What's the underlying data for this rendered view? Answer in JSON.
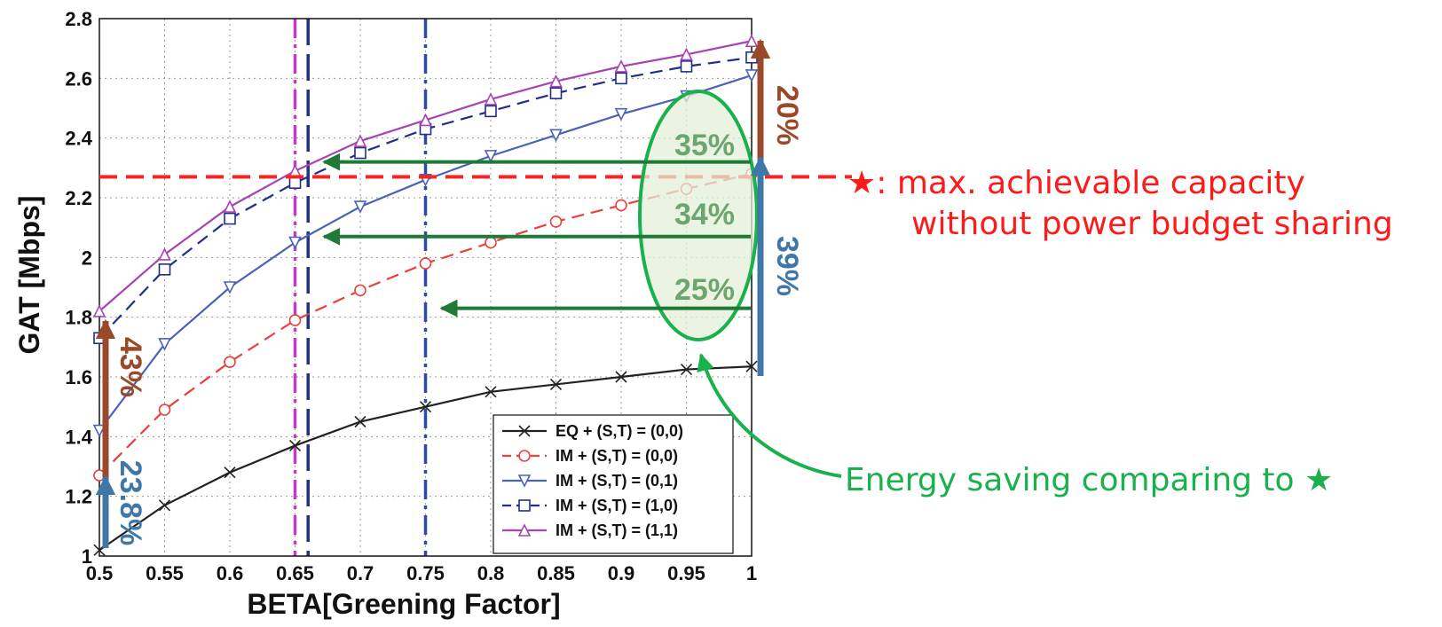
{
  "chart_data": {
    "type": "line",
    "xlabel": "BETA[Greening Factor]",
    "ylabel": "GAT [Mbps]",
    "xlim": [
      0.5,
      1.0
    ],
    "ylim": [
      1.0,
      2.8
    ],
    "x": [
      0.5,
      0.55,
      0.6,
      0.65,
      0.7,
      0.75,
      0.8,
      0.85,
      0.9,
      0.95,
      1.0
    ],
    "x_ticks": [
      "0.5",
      "0.55",
      "0.6",
      "0.65",
      "0.7",
      "0.75",
      "0.8",
      "0.85",
      "0.9",
      "0.95",
      "1"
    ],
    "y_ticks": [
      "1",
      "1.2",
      "1.4",
      "1.6",
      "1.8",
      "2",
      "2.2",
      "2.4",
      "2.6",
      "2.8"
    ],
    "y_tick_values": [
      1.0,
      1.2,
      1.4,
      1.6,
      1.8,
      2.0,
      2.2,
      2.4,
      2.6,
      2.8
    ],
    "grid": true,
    "legend_position": "bottom-right",
    "series": [
      {
        "name": "EQ + (S,T) = (0,0)",
        "color": "#222222",
        "marker": "x",
        "dash": "solid",
        "values": [
          1.02,
          1.17,
          1.28,
          1.37,
          1.45,
          1.5,
          1.55,
          1.575,
          1.6,
          1.625,
          1.635
        ]
      },
      {
        "name": "IM + (S,T) = (0,0)",
        "color": "#e8403c",
        "marker": "circle",
        "dash": "dashed",
        "values": [
          1.27,
          1.49,
          1.65,
          1.79,
          1.89,
          1.98,
          2.05,
          2.12,
          2.175,
          2.23,
          2.28
        ]
      },
      {
        "name": "IM + (S,T) = (0,1)",
        "color": "#4a62b8",
        "marker": "triangle-down",
        "dash": "solid",
        "values": [
          1.42,
          1.71,
          1.9,
          2.05,
          2.17,
          2.26,
          2.34,
          2.41,
          2.48,
          2.54,
          2.61
        ]
      },
      {
        "name": "IM + (S,T) = (1,0)",
        "color": "#1f2f8a",
        "marker": "square",
        "dash": "dashed",
        "values": [
          1.73,
          1.96,
          2.13,
          2.25,
          2.35,
          2.43,
          2.49,
          2.55,
          2.6,
          2.64,
          2.67
        ]
      },
      {
        "name": "IM + (S,T) = (1,1)",
        "color": "#a843b5",
        "marker": "triangle-up",
        "dash": "solid",
        "values": [
          1.82,
          2.01,
          2.17,
          2.29,
          2.39,
          2.46,
          2.53,
          2.59,
          2.64,
          2.68,
          2.725
        ]
      }
    ],
    "vertical_lines": [
      {
        "x": 0.65,
        "color": "#c23bc5",
        "style": "dashdot"
      },
      {
        "x": 0.66,
        "color": "#1f2f8a",
        "style": "long-dash"
      },
      {
        "x": 0.75,
        "color": "#3048a8",
        "style": "dashdot"
      }
    ],
    "threshold": {
      "y": 2.27,
      "color": "#ff2020"
    },
    "annotations": {
      "arrows_left": [
        {
          "label": "35%",
          "y": 2.32,
          "to_x": 0.66
        },
        {
          "label": "34%",
          "y": 2.07,
          "to_x": 0.66
        },
        {
          "label": "25%",
          "y": 1.83,
          "to_x": 0.75
        }
      ],
      "pct_20": "20%",
      "pct_39": "39%",
      "pct_43": "43%",
      "pct_238": "23.8%",
      "star_note_line1": "★: max. achievable capacity",
      "star_note_line2": "without power budget sharing",
      "energy_note": "Energy saving comparing to ★",
      "colors": {
        "brown": "#9a4a2a",
        "steel": "#3f78a8",
        "green_arrow": "#1e7a36",
        "ellipse": "#19b14c",
        "pct_green": "#6aa66e",
        "red_note": "#ff1a1a",
        "green_note": "#19b14c"
      }
    }
  }
}
